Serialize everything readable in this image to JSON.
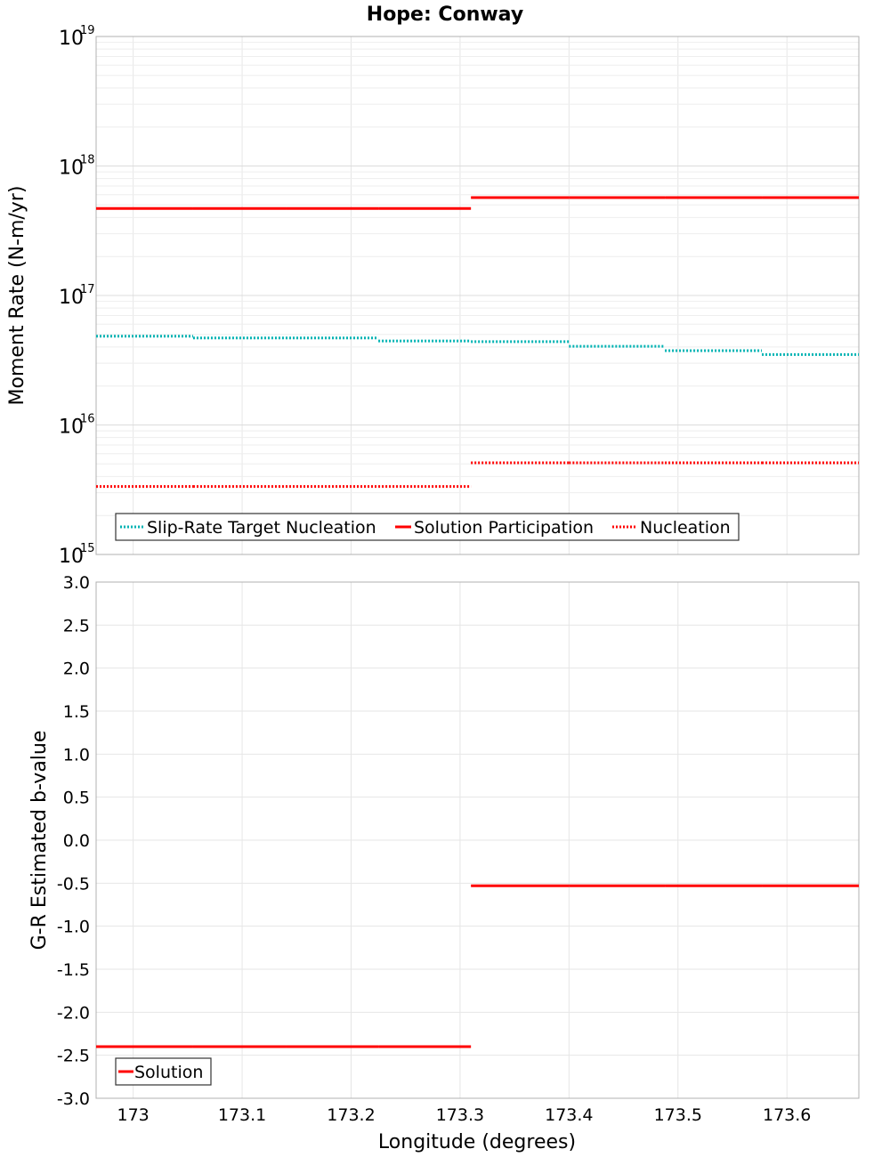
{
  "chart_data": [
    {
      "type": "line",
      "title": "Hope: Conway",
      "ylabel": "Moment Rate (N-m/yr)",
      "yscale": "log",
      "ylim": [
        1000000000000000.0,
        1e+19
      ],
      "xlim": [
        172.966,
        173.666
      ],
      "y_ticks": [
        {
          "base": "10",
          "exp": "15",
          "value": 1000000000000000.0
        },
        {
          "base": "10",
          "exp": "16",
          "value": 1e+16
        },
        {
          "base": "10",
          "exp": "17",
          "value": 1e+17
        },
        {
          "base": "10",
          "exp": "18",
          "value": 1e+18
        },
        {
          "base": "10",
          "exp": "19",
          "value": 1e+19
        }
      ],
      "grid": true,
      "legend_position": "bottom-left",
      "series": [
        {
          "name": "Slip-Rate Target Nucleation",
          "color": "#00b3b3",
          "style": "dotted",
          "segments": [
            {
              "x": [
                172.966,
                173.055
              ],
              "y": 4.85e+16
            },
            {
              "x": [
                173.055,
                173.14
              ],
              "y": 4.7e+16
            },
            {
              "x": [
                173.14,
                173.225
              ],
              "y": 4.7e+16
            },
            {
              "x": [
                173.225,
                173.31
              ],
              "y": 4.45e+16
            },
            {
              "x": [
                173.31,
                173.4
              ],
              "y": 4.4e+16
            },
            {
              "x": [
                173.4,
                173.488
              ],
              "y": 4.05e+16
            },
            {
              "x": [
                173.488,
                173.577
              ],
              "y": 3.75e+16
            },
            {
              "x": [
                173.577,
                173.666
              ],
              "y": 3.5e+16
            }
          ]
        },
        {
          "name": "Solution Participation",
          "color": "#ff0000",
          "style": "solid",
          "segments": [
            {
              "x": [
                172.966,
                173.055
              ],
              "y": 4.7e+17
            },
            {
              "x": [
                173.055,
                173.14
              ],
              "y": 4.7e+17
            },
            {
              "x": [
                173.14,
                173.225
              ],
              "y": 4.7e+17
            },
            {
              "x": [
                173.225,
                173.31
              ],
              "y": 4.7e+17
            },
            {
              "x": [
                173.31,
                173.4
              ],
              "y": 5.7e+17
            },
            {
              "x": [
                173.4,
                173.488
              ],
              "y": 5.7e+17
            },
            {
              "x": [
                173.488,
                173.577
              ],
              "y": 5.7e+17
            },
            {
              "x": [
                173.577,
                173.666
              ],
              "y": 5.7e+17
            }
          ]
        },
        {
          "name": "Nucleation",
          "color": "#ff0000",
          "style": "dotted",
          "segments": [
            {
              "x": [
                172.966,
                173.055
              ],
              "y": 3350000000000000.0
            },
            {
              "x": [
                173.055,
                173.14
              ],
              "y": 3350000000000000.0
            },
            {
              "x": [
                173.14,
                173.225
              ],
              "y": 3350000000000000.0
            },
            {
              "x": [
                173.225,
                173.31
              ],
              "y": 3350000000000000.0
            },
            {
              "x": [
                173.31,
                173.4
              ],
              "y": 5100000000000000.0
            },
            {
              "x": [
                173.4,
                173.488
              ],
              "y": 5100000000000000.0
            },
            {
              "x": [
                173.488,
                173.577
              ],
              "y": 5100000000000000.0
            },
            {
              "x": [
                173.577,
                173.666
              ],
              "y": 5100000000000000.0
            }
          ]
        }
      ]
    },
    {
      "type": "line",
      "xlabel": "Longitude (degrees)",
      "ylabel": "G-R Estimated b-value",
      "ylim": [
        -3.0,
        3.0
      ],
      "xlim": [
        172.966,
        173.666
      ],
      "x_ticks": [
        "173",
        "173.1",
        "173.2",
        "173.3",
        "173.4",
        "173.5",
        "173.6"
      ],
      "y_ticks": [
        "3.0",
        "2.5",
        "2.0",
        "1.5",
        "1.0",
        "0.5",
        "0.0",
        "-0.5",
        "-1.0",
        "-1.5",
        "-2.0",
        "-2.5",
        "-3.0"
      ],
      "grid": true,
      "legend_position": "bottom-left",
      "series": [
        {
          "name": "Solution",
          "color": "#ff0000",
          "style": "solid",
          "segments": [
            {
              "x": [
                172.966,
                173.055
              ],
              "y": -2.4
            },
            {
              "x": [
                173.055,
                173.14
              ],
              "y": -2.4
            },
            {
              "x": [
                173.14,
                173.225
              ],
              "y": -2.4
            },
            {
              "x": [
                173.225,
                173.31
              ],
              "y": -2.4
            },
            {
              "x": [
                173.31,
                173.4
              ],
              "y": -0.53
            },
            {
              "x": [
                173.4,
                173.488
              ],
              "y": -0.53
            },
            {
              "x": [
                173.488,
                173.577
              ],
              "y": -0.53
            },
            {
              "x": [
                173.577,
                173.666
              ],
              "y": -0.53
            }
          ]
        }
      ]
    }
  ]
}
